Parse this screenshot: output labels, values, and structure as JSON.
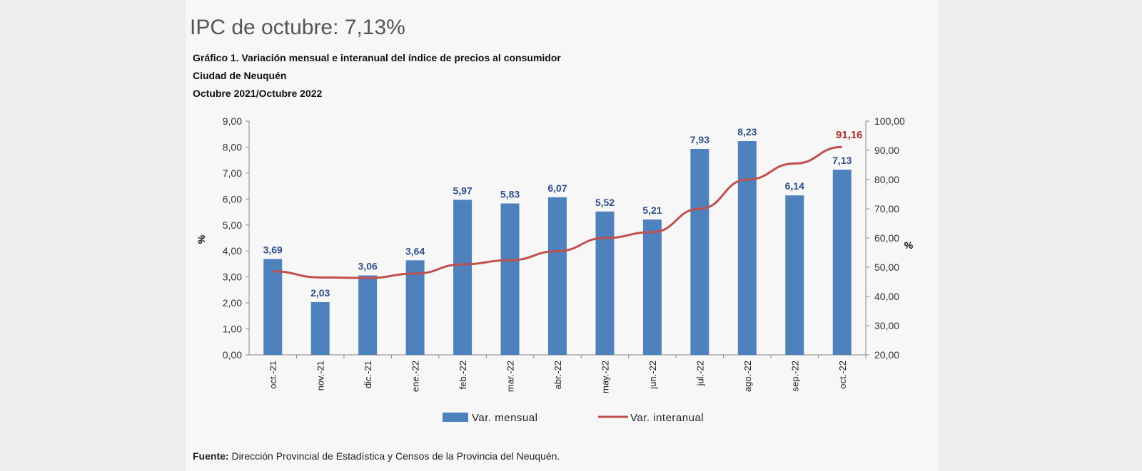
{
  "page": {
    "title": "IPC de octubre: 7,13%"
  },
  "chart_data": {
    "type": "bar",
    "title": "Gráfico 1. Variación mensual e interanual del índice de precios al consumidor",
    "subtitles": [
      "Ciudad de Neuquén",
      "Octubre 2021/Octubre 2022"
    ],
    "categories": [
      "oct.-21",
      "nov.-21",
      "dic.-21",
      "ene.-22",
      "feb.-22",
      "mar.-22",
      "abr.-22",
      "may.-22",
      "jun.-22",
      "jul.-22",
      "ago.-22",
      "sep.-22",
      "oct.-22"
    ],
    "series": [
      {
        "name": "Var. mensual",
        "kind": "bar",
        "axis": "left",
        "color": "#4f81bd",
        "values": [
          3.69,
          2.03,
          3.06,
          3.64,
          5.97,
          5.83,
          6.07,
          5.52,
          5.21,
          7.93,
          8.23,
          6.14,
          7.13
        ],
        "labels": [
          "3,69",
          "2,03",
          "3,06",
          "3,64",
          "5,97",
          "5,83",
          "6,07",
          "5,52",
          "5,21",
          "7,93",
          "8,23",
          "6,14",
          "7,13"
        ]
      },
      {
        "name": "Var. interanual",
        "kind": "line",
        "axis": "right",
        "color": "#c0504d",
        "values": [
          48.6,
          46.5,
          46.3,
          47.8,
          51.0,
          52.4,
          55.5,
          60.0,
          62.0,
          70.0,
          80.0,
          85.5,
          91.16
        ],
        "last_label": "91,16"
      }
    ],
    "ylabel": "%",
    "y2label": "%",
    "ylim": [
      0,
      9
    ],
    "y2lim": [
      20,
      100
    ],
    "yticks": [
      "0,00",
      "1,00",
      "2,00",
      "3,00",
      "4,00",
      "5,00",
      "6,00",
      "7,00",
      "8,00",
      "9,00"
    ],
    "y2ticks": [
      "20,00",
      "30,00",
      "40,00",
      "50,00",
      "60,00",
      "70,00",
      "80,00",
      "90,00",
      "100,00"
    ],
    "grid": false,
    "legend_position": "bottom"
  },
  "source": {
    "label": "Fuente:",
    "text": "Dirección Provincial de Estadística y Censos de la Provincia del Neuquén."
  }
}
